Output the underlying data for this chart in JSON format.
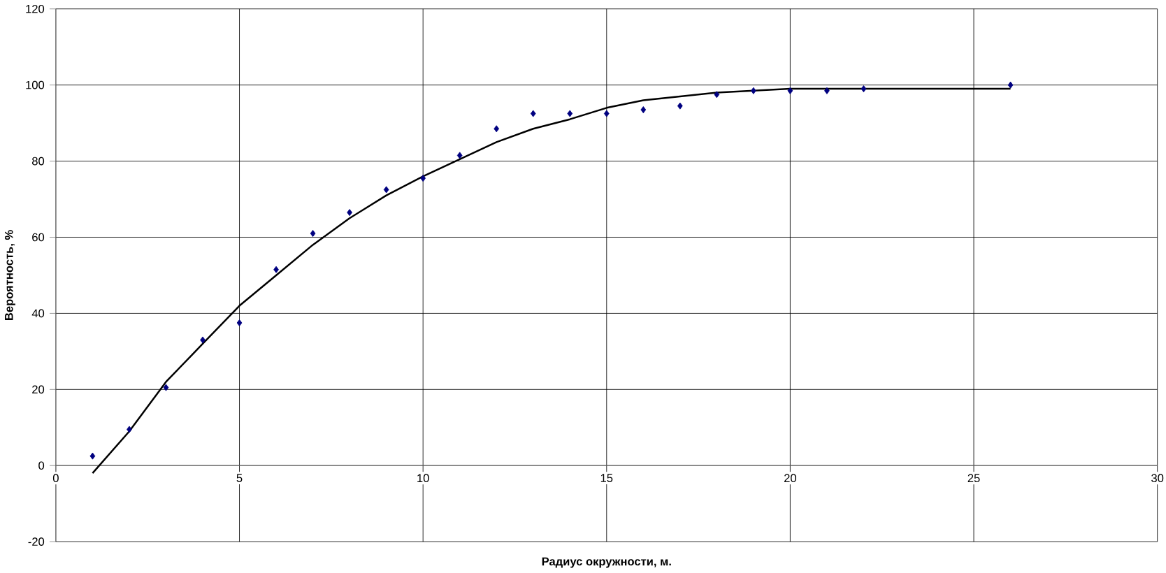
{
  "chart_data": {
    "type": "scatter",
    "xlabel": "Радиус окружности, м.",
    "ylabel": "Вероятность, %",
    "xlim": [
      0,
      30
    ],
    "xticks": [
      0,
      5,
      10,
      15,
      20,
      25,
      30
    ],
    "ylim": [
      -20,
      120
    ],
    "yticks": [
      -20,
      0,
      20,
      40,
      60,
      80,
      100,
      120
    ],
    "grid": true,
    "series": [
      {
        "marker": "diamond",
        "color": "#000080",
        "x": [
          1,
          2,
          3,
          4,
          5,
          6,
          7,
          8,
          9,
          10,
          11,
          12,
          13,
          14,
          15,
          16,
          17,
          18,
          19,
          20,
          21,
          22,
          26
        ],
        "values": [
          2.5,
          9.5,
          20.5,
          33,
          37.5,
          51.5,
          61,
          66.5,
          72.5,
          75.5,
          81.5,
          88.5,
          92.5,
          92.5,
          92.5,
          93.5,
          94.5,
          97.5,
          98.5,
          98.5,
          98.5,
          99,
          100
        ]
      },
      {
        "type": "line",
        "marker": "none",
        "color": "#000000",
        "x": [
          1,
          2,
          3,
          4,
          5,
          6,
          7,
          8,
          9,
          10,
          11,
          12,
          13,
          14,
          15,
          16,
          17,
          18,
          19,
          20,
          22,
          26
        ],
        "values": [
          -2,
          9,
          22,
          32,
          42,
          50,
          58,
          65,
          71,
          76,
          80.5,
          85,
          88.5,
          91,
          94,
          96,
          97,
          98,
          98.5,
          99,
          99,
          99
        ]
      }
    ]
  }
}
